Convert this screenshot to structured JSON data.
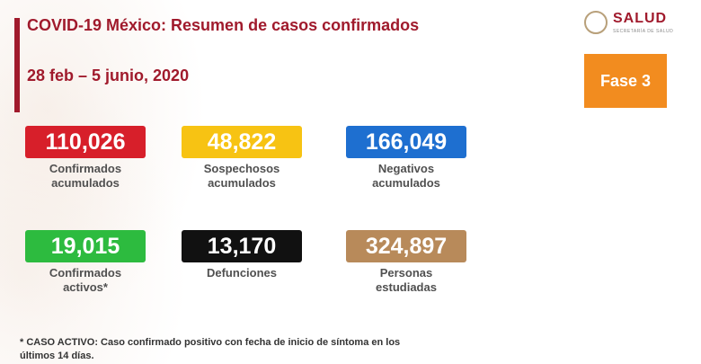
{
  "header": {
    "title": "COVID-19 México: Resumen de casos confirmados",
    "date_range": "28 feb – 5 junio, 2020"
  },
  "logo": {
    "text": "SALUD",
    "subtext": "SECRETARÍA DE SALUD"
  },
  "phase": {
    "label": "Fase 3",
    "color": "#f28c1f"
  },
  "stats": [
    {
      "value": "110,026",
      "label_line1": "Confirmados",
      "label_line2": "acumulados",
      "color": "#d71f2a"
    },
    {
      "value": "48,822",
      "label_line1": "Sospechosos",
      "label_line2": "acumulados",
      "color": "#f7c313"
    },
    {
      "value": "166,049",
      "label_line1": "Negativos",
      "label_line2": "acumulados",
      "color": "#1e6fd0"
    },
    {
      "value": "19,015",
      "label_line1": "Confirmados",
      "label_line2": "activos*",
      "color": "#2dbb3f"
    },
    {
      "value": "13,170",
      "label_line1": "Defunciones",
      "label_line2": "",
      "color": "#111111"
    },
    {
      "value": "324,897",
      "label_line1": "Personas",
      "label_line2": "estudiadas",
      "color": "#b88a5a"
    }
  ],
  "footnote": {
    "line1": "* CASO ACTIVO: Caso confirmado positivo con fecha de inicio de síntoma en los",
    "line2": "últimos 14 días."
  },
  "colors": {
    "brand": "#a01a2c"
  }
}
